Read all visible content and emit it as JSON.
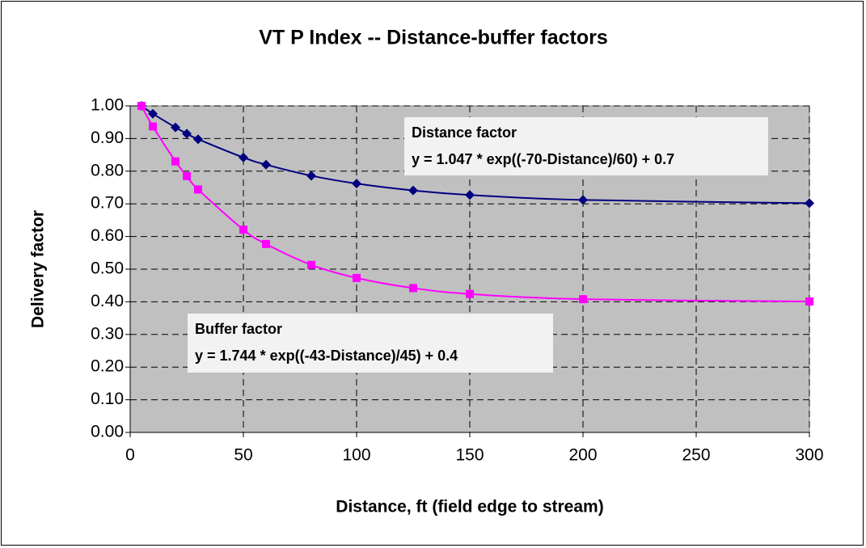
{
  "chart_data": {
    "type": "scatter-line",
    "title": "VT P Index -- Distance-buffer factors",
    "x_label": "Distance, ft (field edge to stream)",
    "y_label": "Delivery factor",
    "x": [
      5,
      10,
      20,
      25,
      30,
      50,
      60,
      80,
      100,
      125,
      150,
      200,
      300
    ],
    "series": [
      {
        "name": "Distance factor",
        "color": "#000080",
        "marker": "diamond",
        "values": [
          1.0,
          0.976,
          0.934,
          0.915,
          0.898,
          0.842,
          0.82,
          0.786,
          0.762,
          0.741,
          0.727,
          0.712,
          0.702
        ]
      },
      {
        "name": "Buffer factor",
        "color": "#ff00ff",
        "marker": "square",
        "values": [
          1.0,
          0.937,
          0.83,
          0.785,
          0.744,
          0.621,
          0.577,
          0.513,
          0.473,
          0.442,
          0.424,
          0.408,
          0.401
        ]
      }
    ],
    "xlim": [
      0,
      300
    ],
    "xticks": [
      0,
      50,
      100,
      150,
      200,
      250,
      300
    ],
    "ylim": [
      0,
      1
    ],
    "yticks": [
      {
        "value": 0,
        "label": "0.00"
      },
      {
        "value": 0.1,
        "label": "0.10"
      },
      {
        "value": 0.2,
        "label": "0.20"
      },
      {
        "value": 0.3,
        "label": "0.30"
      },
      {
        "value": 0.4,
        "label": "0.40"
      },
      {
        "value": 0.5,
        "label": "0.50"
      },
      {
        "value": 0.6,
        "label": "0.60"
      },
      {
        "value": 0.7,
        "label": "0.70"
      },
      {
        "value": 0.8,
        "label": "0.80"
      },
      {
        "value": 0.9,
        "label": "0.90"
      },
      {
        "value": 1,
        "label": "1.00"
      }
    ],
    "grid": true,
    "smooth": true,
    "annotations": [
      {
        "lines": [
          "Distance factor",
          "y = 1.047 * exp((-70-Distance)/60) + 0.7"
        ]
      },
      {
        "lines": [
          "Buffer factor",
          "y = 1.744 * exp((-43-Distance)/45) + 0.4"
        ]
      }
    ]
  }
}
